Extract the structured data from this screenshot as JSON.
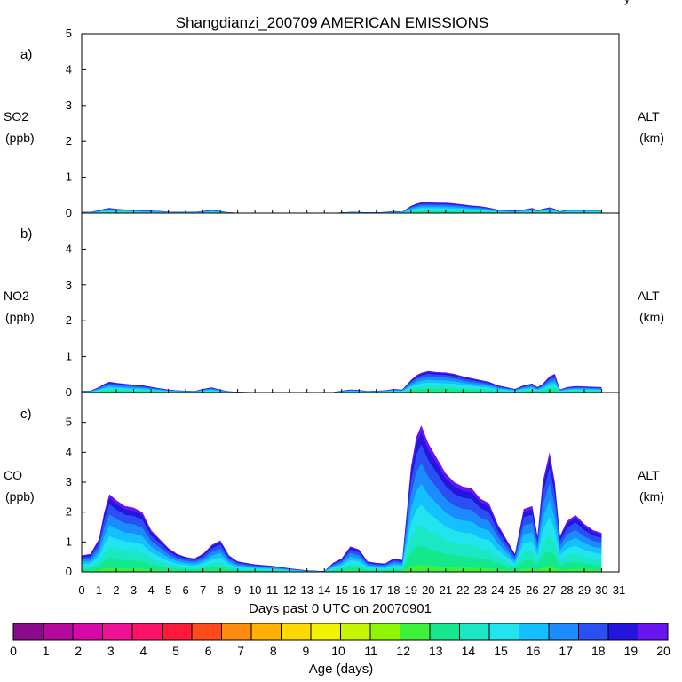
{
  "title": "Shangdianzi_200709 AMERICAN EMISSIONS",
  "corner_mark": "ý",
  "xlabel": "Days past 0 UTC on 20070901",
  "x_ticks": [
    "0",
    "1",
    "2",
    "3",
    "4",
    "5",
    "6",
    "7",
    "8",
    "9",
    "10",
    "11",
    "12",
    "13",
    "14",
    "15",
    "16",
    "17",
    "18",
    "19",
    "20",
    "21",
    "22",
    "23",
    "24",
    "25",
    "26",
    "27",
    "28",
    "29",
    "30",
    "31"
  ],
  "right_axis_label": "ALT",
  "right_axis_unit": "(km)",
  "colorbar": {
    "label": "Age (days)",
    "tick_labels": [
      "0",
      "1",
      "2",
      "3",
      "4",
      "5",
      "6",
      "7",
      "8",
      "9",
      "10",
      "11",
      "12",
      "13",
      "14",
      "15",
      "16",
      "17",
      "18",
      "19",
      "20"
    ],
    "colors": [
      "#8b0a8b",
      "#b5089d",
      "#d808a8",
      "#f01196",
      "#ff1368",
      "#ff1a3a",
      "#ff4a1a",
      "#ff8a10",
      "#ffb000",
      "#ffd800",
      "#f2f200",
      "#c8f500",
      "#8ef600",
      "#3ef23c",
      "#14e88c",
      "#1ae8c4",
      "#22e4ee",
      "#14c0ff",
      "#1a8cff",
      "#2a50f4",
      "#2414e0",
      "#6a14f4"
    ],
    "edge_color": "#000000"
  },
  "chart_data": [
    {
      "type": "area",
      "panel_letter": "a)",
      "species": "SO2",
      "units": "(ppb)",
      "ylim": [
        0,
        5
      ],
      "y_ticks": [
        "0",
        "1",
        "2",
        "3",
        "4",
        "5"
      ],
      "xlim": [
        0,
        31
      ],
      "x": [
        0,
        0.5,
        1,
        1.3,
        1.6,
        2,
        2.5,
        3,
        3.5,
        4,
        4.5,
        5,
        5.5,
        6,
        6.5,
        7,
        7.5,
        8,
        8.5,
        9,
        10,
        11,
        12,
        13,
        14,
        14.5,
        15,
        15.5,
        16,
        16.5,
        17,
        17.5,
        18,
        18.5,
        19,
        19.3,
        19.6,
        20,
        20.5,
        21,
        21.5,
        22,
        22.5,
        23,
        23.5,
        24,
        24.5,
        25,
        25.5,
        26,
        26.3,
        26.6,
        27,
        27.3,
        27.6,
        28,
        28.5,
        29,
        29.5,
        30
      ],
      "total": [
        0.03,
        0.03,
        0.08,
        0.12,
        0.14,
        0.12,
        0.1,
        0.09,
        0.08,
        0.07,
        0.06,
        0.04,
        0.03,
        0.04,
        0.03,
        0.06,
        0.09,
        0.06,
        0.02,
        0.01,
        0.01,
        0.0,
        0.0,
        0.0,
        0.0,
        0.0,
        0.02,
        0.03,
        0.03,
        0.02,
        0.02,
        0.03,
        0.06,
        0.04,
        0.2,
        0.26,
        0.3,
        0.3,
        0.29,
        0.29,
        0.27,
        0.24,
        0.21,
        0.19,
        0.15,
        0.1,
        0.08,
        0.07,
        0.1,
        0.14,
        0.08,
        0.12,
        0.16,
        0.12,
        0.05,
        0.1,
        0.1,
        0.1,
        0.09,
        0.1
      ]
    },
    {
      "type": "area",
      "panel_letter": "b)",
      "species": "NO2",
      "units": "(ppb)",
      "ylim": [
        0,
        5
      ],
      "y_ticks": [
        "0",
        "1",
        "2",
        "3",
        "4"
      ],
      "xlim": [
        0,
        31
      ],
      "x": [
        0,
        0.5,
        1,
        1.3,
        1.6,
        2,
        2.5,
        3,
        3.5,
        4,
        4.5,
        5,
        5.5,
        6,
        6.5,
        7,
        7.5,
        8,
        8.5,
        9,
        10,
        11,
        12,
        13,
        14,
        14.5,
        15,
        15.5,
        16,
        16.5,
        17,
        17.5,
        18,
        18.5,
        19,
        19.3,
        19.6,
        20,
        20.5,
        21,
        21.5,
        22,
        22.5,
        23,
        23.5,
        24,
        24.5,
        25,
        25.5,
        26,
        26.3,
        26.6,
        27,
        27.3,
        27.6,
        28,
        28.5,
        29,
        29.5,
        30
      ],
      "total": [
        0.05,
        0.05,
        0.15,
        0.24,
        0.3,
        0.27,
        0.24,
        0.22,
        0.2,
        0.16,
        0.12,
        0.08,
        0.06,
        0.05,
        0.04,
        0.1,
        0.14,
        0.08,
        0.03,
        0.02,
        0.01,
        0.0,
        0.0,
        0.0,
        0.0,
        0.01,
        0.05,
        0.08,
        0.07,
        0.04,
        0.05,
        0.06,
        0.1,
        0.08,
        0.35,
        0.48,
        0.55,
        0.6,
        0.57,
        0.56,
        0.52,
        0.45,
        0.4,
        0.35,
        0.3,
        0.2,
        0.15,
        0.1,
        0.2,
        0.25,
        0.15,
        0.24,
        0.45,
        0.52,
        0.08,
        0.15,
        0.18,
        0.17,
        0.16,
        0.15
      ]
    },
    {
      "type": "area",
      "panel_letter": "c)",
      "species": "CO",
      "units": "(ppb)",
      "ylim": [
        0,
        6
      ],
      "y_ticks": [
        "0",
        "1",
        "2",
        "3",
        "4",
        "5"
      ],
      "xlim": [
        0,
        31
      ],
      "x": [
        0,
        0.5,
        1,
        1.3,
        1.6,
        2,
        2.5,
        3,
        3.5,
        4,
        4.5,
        5,
        5.5,
        6,
        6.5,
        7,
        7.5,
        8,
        8.5,
        9,
        10,
        11,
        12,
        13,
        14,
        14.5,
        15,
        15.5,
        16,
        16.5,
        17,
        17.5,
        18,
        18.5,
        19,
        19.3,
        19.6,
        20,
        20.5,
        21,
        21.5,
        22,
        22.5,
        23,
        23.5,
        24,
        24.5,
        25,
        25.5,
        26,
        26.3,
        26.6,
        27,
        27.3,
        27.6,
        28,
        28.5,
        29,
        29.5,
        30
      ],
      "total": [
        0.55,
        0.6,
        1.1,
        2.0,
        2.6,
        2.4,
        2.2,
        2.15,
        2.0,
        1.4,
        1.1,
        0.8,
        0.6,
        0.5,
        0.45,
        0.6,
        0.9,
        1.05,
        0.55,
        0.35,
        0.25,
        0.2,
        0.12,
        0.05,
        0.02,
        0.3,
        0.45,
        0.85,
        0.75,
        0.35,
        0.3,
        0.28,
        0.45,
        0.4,
        3.5,
        4.5,
        4.9,
        4.3,
        3.8,
        3.3,
        3.0,
        2.85,
        2.8,
        2.45,
        2.3,
        1.6,
        1.1,
        0.6,
        2.1,
        2.2,
        1.2,
        3.0,
        4.0,
        3.0,
        1.2,
        1.7,
        1.9,
        1.6,
        1.4,
        1.3
      ]
    }
  ]
}
